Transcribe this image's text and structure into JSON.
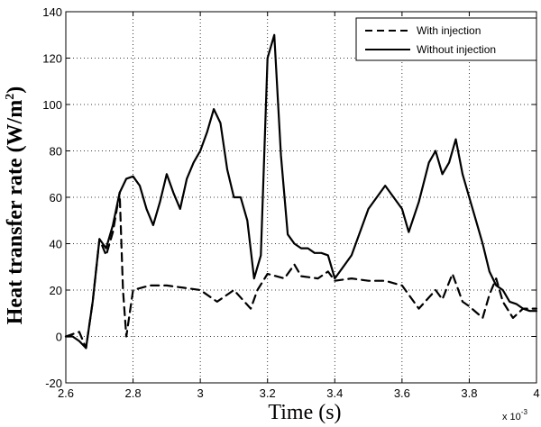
{
  "chart_data": {
    "type": "line",
    "xlabel": "Time (s)",
    "ylabel": "Heat transfer rate (W/m",
    "ylabel_sup": "2",
    "ylabel_close": ")",
    "x_multiplier_label": "x 10",
    "x_multiplier_exp": "-3",
    "xlim": [
      2.6,
      4.0
    ],
    "ylim": [
      -20,
      140
    ],
    "x_ticks": [
      "2.6",
      "2.8",
      "3",
      "3.2",
      "3.4",
      "3.6",
      "3.8",
      "4"
    ],
    "x_tick_values": [
      2.6,
      2.8,
      3.0,
      3.2,
      3.4,
      3.6,
      3.8,
      4.0
    ],
    "y_ticks": [
      "-20",
      "0",
      "20",
      "40",
      "60",
      "80",
      "100",
      "120",
      "140"
    ],
    "y_tick_values": [
      -20,
      0,
      20,
      40,
      60,
      80,
      100,
      120,
      140
    ],
    "grid": true,
    "legend_position": "top-right",
    "series": [
      {
        "name": "With injection",
        "style": "dashed",
        "color": "#000000",
        "x": [
          2.6,
          2.62,
          2.64,
          2.66,
          2.68,
          2.7,
          2.72,
          2.74,
          2.76,
          2.77,
          2.78,
          2.8,
          2.85,
          2.9,
          2.95,
          3.0,
          3.05,
          3.1,
          3.15,
          3.17,
          3.2,
          3.25,
          3.28,
          3.3,
          3.35,
          3.38,
          3.4,
          3.45,
          3.5,
          3.55,
          3.6,
          3.65,
          3.7,
          3.72,
          3.75,
          3.78,
          3.8,
          3.84,
          3.86,
          3.88,
          3.9,
          3.93,
          3.96,
          4.0
        ],
        "y": [
          0,
          1,
          2,
          -5,
          15,
          42,
          35,
          45,
          62,
          20,
          0,
          20,
          22,
          22,
          21,
          20,
          15,
          20,
          12,
          20,
          27,
          25,
          31,
          26,
          25,
          28,
          24,
          25,
          24,
          24,
          22,
          12,
          20,
          16,
          27,
          15,
          13,
          8,
          18,
          25,
          15,
          8,
          12,
          12
        ]
      },
      {
        "name": "Without injection",
        "style": "solid",
        "color": "#000000",
        "x": [
          2.6,
          2.62,
          2.64,
          2.66,
          2.68,
          2.7,
          2.72,
          2.74,
          2.76,
          2.78,
          2.8,
          2.82,
          2.84,
          2.86,
          2.88,
          2.9,
          2.92,
          2.94,
          2.96,
          2.98,
          3.0,
          3.02,
          3.04,
          3.06,
          3.08,
          3.1,
          3.12,
          3.14,
          3.16,
          3.18,
          3.2,
          3.22,
          3.24,
          3.26,
          3.28,
          3.3,
          3.32,
          3.34,
          3.36,
          3.38,
          3.4,
          3.45,
          3.5,
          3.55,
          3.6,
          3.62,
          3.65,
          3.68,
          3.7,
          3.72,
          3.74,
          3.76,
          3.78,
          3.8,
          3.82,
          3.84,
          3.86,
          3.88,
          3.9,
          3.92,
          3.94,
          3.96,
          3.98,
          4.0
        ],
        "y": [
          0,
          0,
          -2,
          -5,
          15,
          42,
          38,
          48,
          62,
          68,
          69,
          65,
          55,
          48,
          58,
          70,
          62,
          55,
          68,
          75,
          80,
          88,
          98,
          92,
          72,
          60,
          60,
          50,
          25,
          35,
          120,
          130,
          78,
          44,
          40,
          38,
          38,
          36,
          36,
          35,
          25,
          35,
          55,
          65,
          55,
          45,
          58,
          75,
          80,
          70,
          75,
          85,
          70,
          60,
          50,
          40,
          28,
          22,
          20,
          15,
          14,
          12,
          11,
          11
        ]
      }
    ]
  }
}
